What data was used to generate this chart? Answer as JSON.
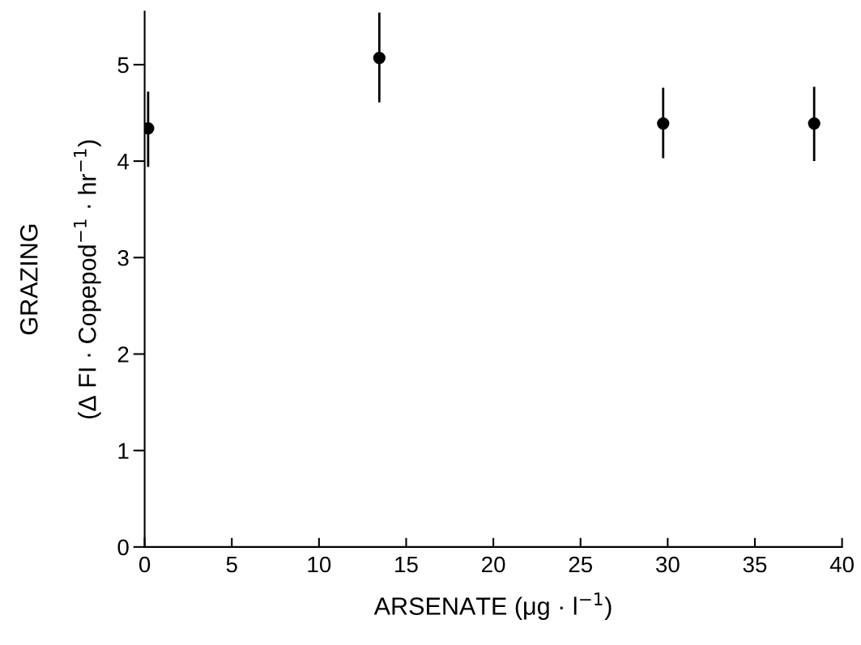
{
  "chart_data": {
    "type": "scatter",
    "xlabel": "ARSENATE (μg · l$^{−1}$)",
    "ylabel": "GRAZING\n\n(Δ FI · Copepod$^{−1}$ · hr$^{−1}$)",
    "x": [
      0.2,
      13.46,
      29.74,
      38.4
    ],
    "values": [
      4.34,
      5.07,
      4.39,
      4.39
    ],
    "errors": [
      [
        3.94,
        4.72
      ],
      [
        4.61,
        5.54
      ],
      [
        4.03,
        4.76
      ],
      [
        4.0,
        4.77
      ]
    ],
    "color": "#000000",
    "marker": "circle",
    "xlim": [
      0,
      40
    ],
    "ylim": [
      0,
      5.55
    ],
    "xticks": [
      0,
      5,
      10,
      15,
      20,
      25,
      30,
      35,
      40
    ],
    "yticks": [
      0,
      1,
      2,
      3,
      4,
      5
    ],
    "grid": false,
    "legend": false
  }
}
